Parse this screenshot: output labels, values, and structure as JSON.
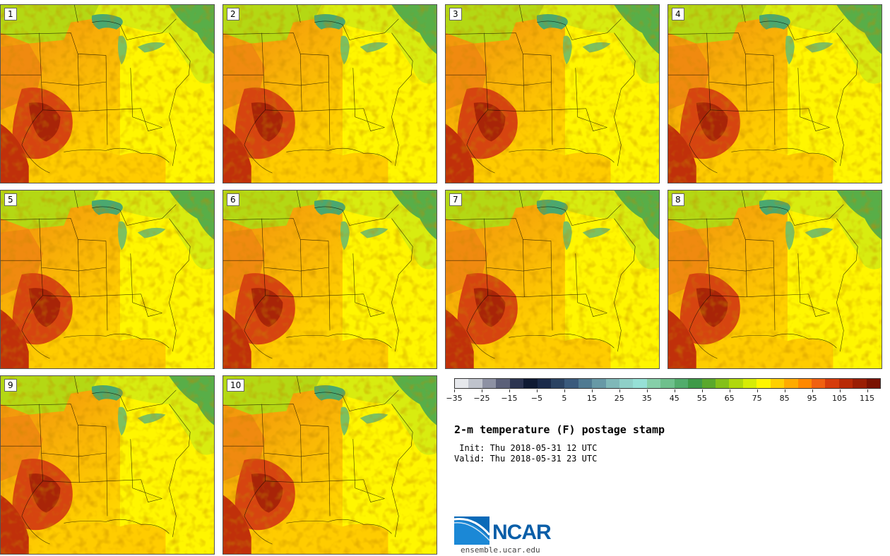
{
  "panels": [
    {
      "number": "1"
    },
    {
      "number": "2"
    },
    {
      "number": "3"
    },
    {
      "number": "4"
    },
    {
      "number": "5"
    },
    {
      "number": "6"
    },
    {
      "number": "7"
    },
    {
      "number": "8"
    },
    {
      "number": "9"
    },
    {
      "number": "10"
    }
  ],
  "colorbar": {
    "colors": [
      "#e6e8ec",
      "#bfc3cc",
      "#8d91a3",
      "#5b6079",
      "#2c3551",
      "#0f1a33",
      "#1a2a4a",
      "#2a4262",
      "#3a5a7c",
      "#4f7a92",
      "#6799a6",
      "#7fb8b8",
      "#8fd0c8",
      "#96e0d6",
      "#86cfa9",
      "#6ec08c",
      "#52ac6c",
      "#3e9a48",
      "#5aa82c",
      "#84c01a",
      "#b0d80c",
      "#d6ec06",
      "#fff600",
      "#ffd000",
      "#ffab00",
      "#ff8800",
      "#f06010",
      "#d63c0c",
      "#b82a06",
      "#9a1e04",
      "#7a1202"
    ],
    "tick_labels": [
      "−35",
      "−25",
      "−15",
      "−5",
      "5",
      "15",
      "25",
      "35",
      "45",
      "55",
      "65",
      "75",
      "85",
      "95",
      "105",
      "115"
    ]
  },
  "title": "2-m temperature (F) postage stamp",
  "init_line": " Init: Thu 2018-05-31 12 UTC",
  "valid_line": "Valid: Thu 2018-05-31 23 UTC",
  "logo": {
    "name": "NCAR",
    "site": "ensemble.ucar.edu"
  }
}
